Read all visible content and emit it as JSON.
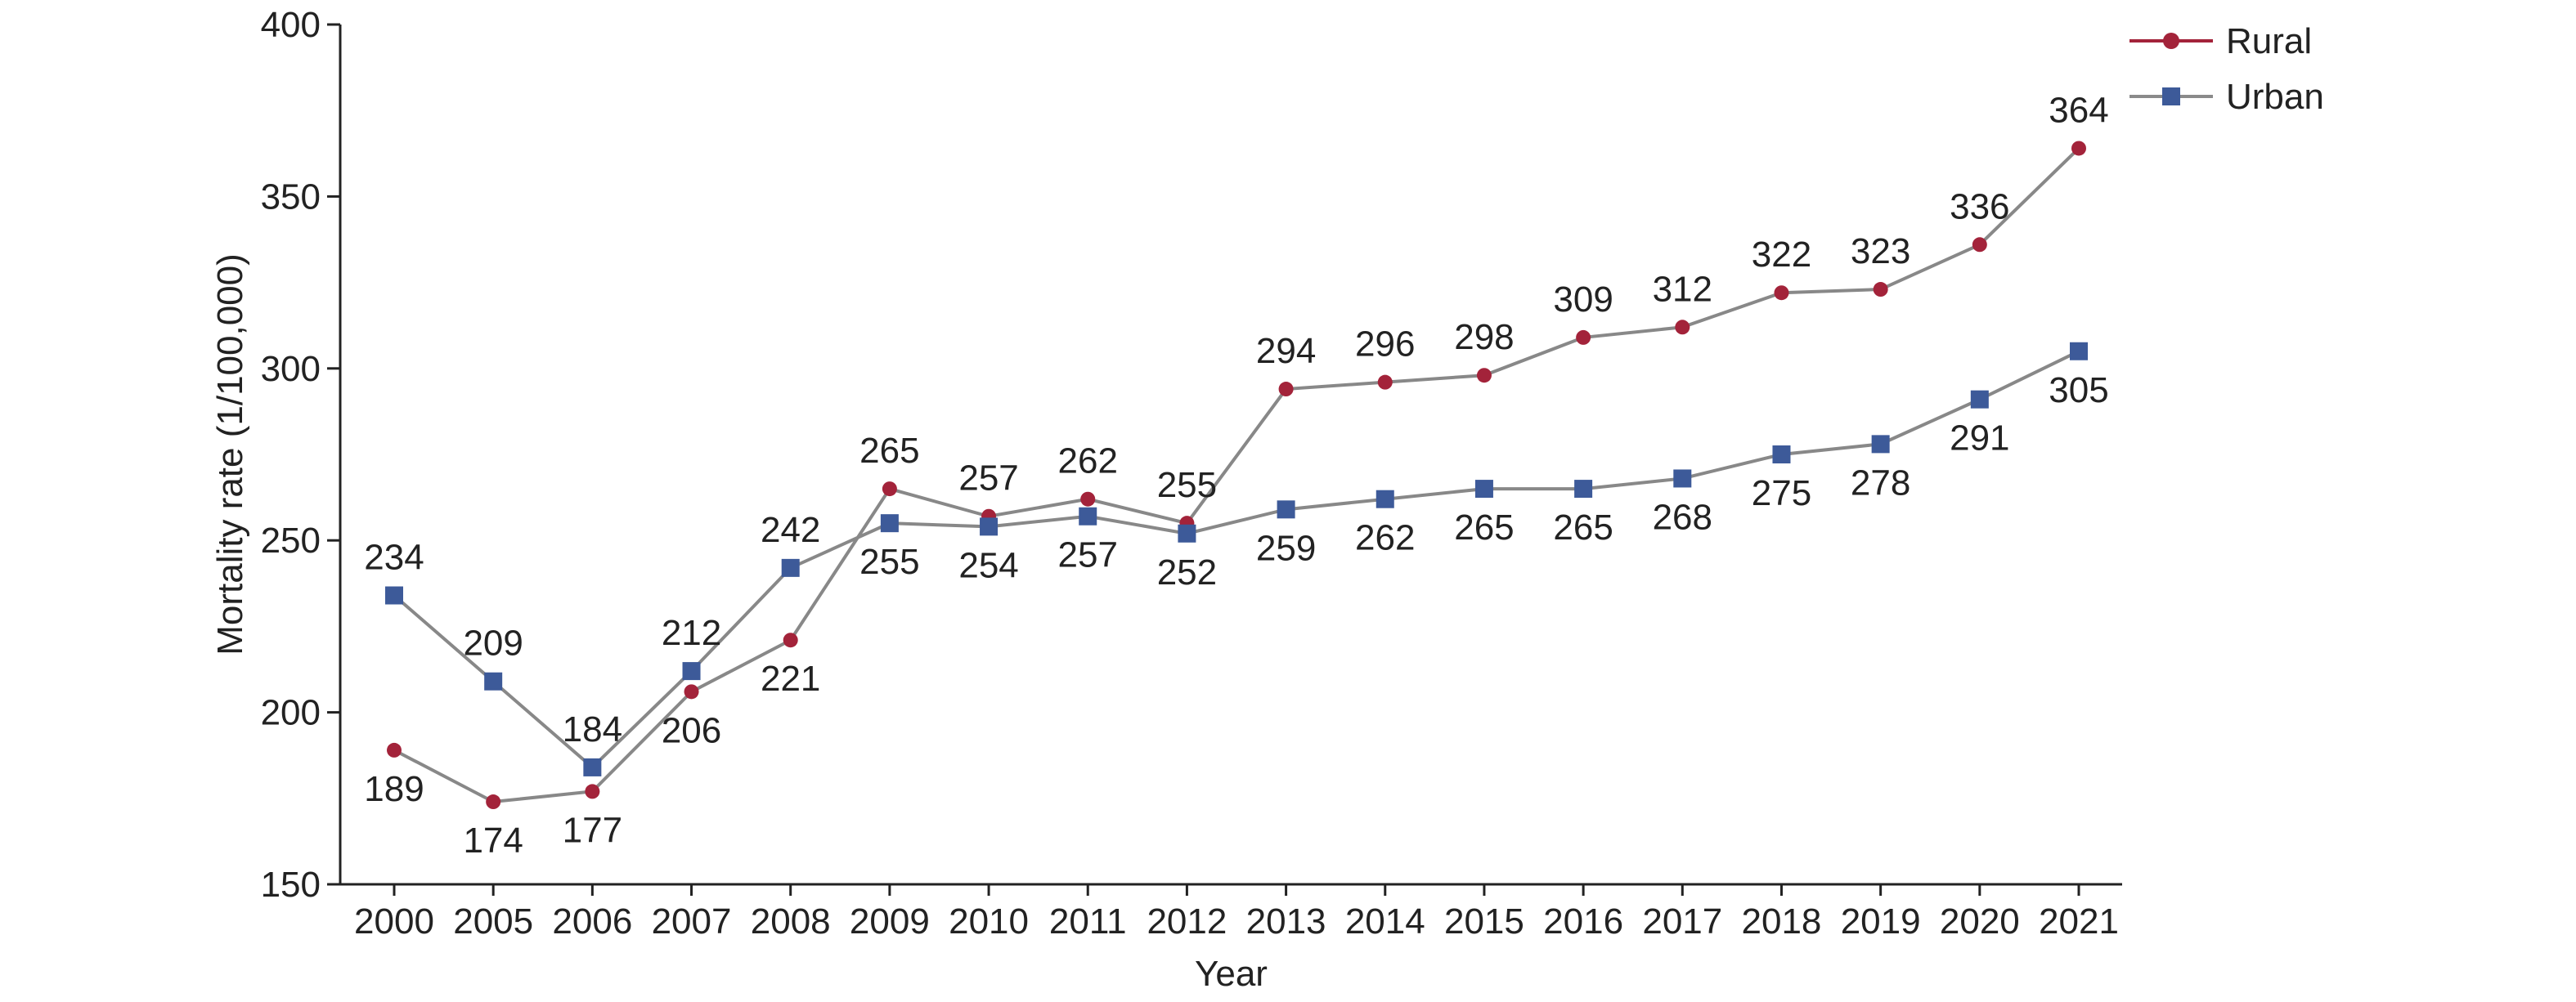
{
  "chart_data": {
    "type": "line",
    "x": [
      "2000",
      "2005",
      "2006",
      "2007",
      "2008",
      "2009",
      "2010",
      "2011",
      "2012",
      "2013",
      "2014",
      "2015",
      "2016",
      "2017",
      "2018",
      "2019",
      "2020",
      "2021"
    ],
    "xlabel": "Year",
    "ylabel": "Mortality rate (1/100,000)",
    "ylim": [
      150,
      400
    ],
    "yticks": [
      150,
      200,
      250,
      300,
      350,
      400
    ],
    "grid": false,
    "legend_position": "top-right",
    "series": [
      {
        "name": "Rural",
        "marker": "circle",
        "color": "#a3233a",
        "line_color": "#a3233a",
        "values": [
          189,
          174,
          177,
          206,
          221,
          265,
          257,
          262,
          255,
          294,
          296,
          298,
          309,
          312,
          322,
          323,
          336,
          364
        ]
      },
      {
        "name": "Urban",
        "marker": "square",
        "color": "#3d5a99",
        "line_color": "#8a8a8a",
        "values": [
          234,
          209,
          184,
          212,
          242,
          255,
          254,
          257,
          252,
          259,
          262,
          265,
          265,
          268,
          275,
          278,
          291,
          305
        ]
      }
    ]
  }
}
